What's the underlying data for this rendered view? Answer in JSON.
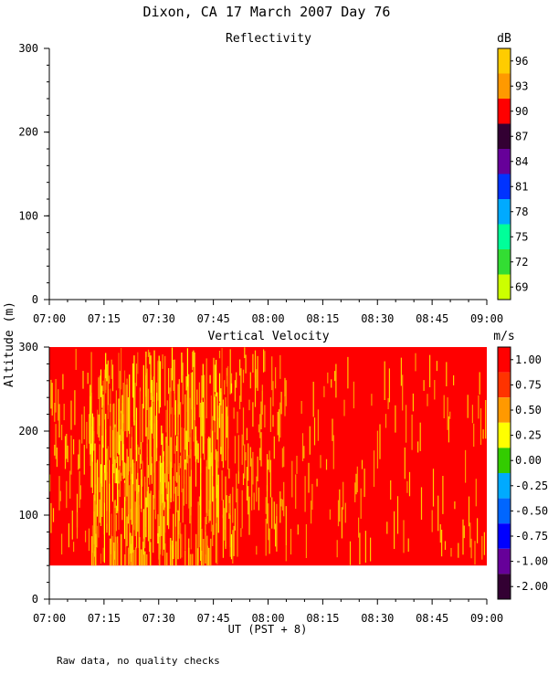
{
  "header": {
    "title": "Dixon, CA 17 March 2007  Day  76"
  },
  "shared": {
    "ylabel": "Altitude (m)",
    "xlabel": "UT  (PST + 8)",
    "footnote": "Raw data, no quality checks",
    "x_ticks": [
      "07:00",
      "07:15",
      "07:30",
      "07:45",
      "08:00",
      "08:15",
      "08:30",
      "08:45",
      "09:00"
    ]
  },
  "chart_data": [
    {
      "type": "heatmap",
      "title": "Reflectivity",
      "units": "dB",
      "xlim": [
        "07:00",
        "09:00"
      ],
      "ylim": [
        0,
        300
      ],
      "y_ticks": [
        0,
        100,
        200,
        300
      ],
      "colorbar_labels": [
        "96",
        "93",
        "90",
        "87",
        "84",
        "81",
        "78",
        "75",
        "72",
        "69"
      ],
      "colorbar_colors": [
        "#ffcc00",
        "#ff9900",
        "#ff0000",
        "#330033",
        "#660099",
        "#0033ff",
        "#00aaff",
        "#00ff99",
        "#33dd33",
        "#ccff00"
      ],
      "data": "no returns displayed"
    },
    {
      "type": "heatmap",
      "title": "Vertical Velocity",
      "units": "m/s",
      "xlim": [
        "07:00",
        "09:00"
      ],
      "ylim": [
        0,
        300
      ],
      "y_ticks": [
        0,
        100,
        200,
        300
      ],
      "data_altitude_range": [
        40,
        300
      ],
      "colorbar_labels": [
        "1.00",
        "0.75",
        "0.50",
        "0.25",
        "0.00",
        "-0.25",
        "-0.50",
        "-0.75",
        "-1.00",
        "-2.00"
      ],
      "colorbar_colors": [
        "#ff0000",
        "#ff3300",
        "#ff9900",
        "#ffff00",
        "#33cc00",
        "#00aaff",
        "#0066ff",
        "#0000ff",
        "#660099",
        "#330033"
      ],
      "dominant_value": "1.00",
      "time_bands": [
        {
          "start": "07:00",
          "end": "07:11",
          "character": "mostly >1.00 with sparse 0.50 streaks"
        },
        {
          "start": "07:11",
          "end": "07:50",
          "character": "dense 0.50-0.75 streaks, strongest 07:12-07:35"
        },
        {
          "start": "07:50",
          "end": "08:05",
          "character": "moderate 0.75 streaks"
        },
        {
          "start": "08:05",
          "end": "09:00",
          "character": "mostly >1.00 with isolated streaks"
        }
      ]
    }
  ]
}
